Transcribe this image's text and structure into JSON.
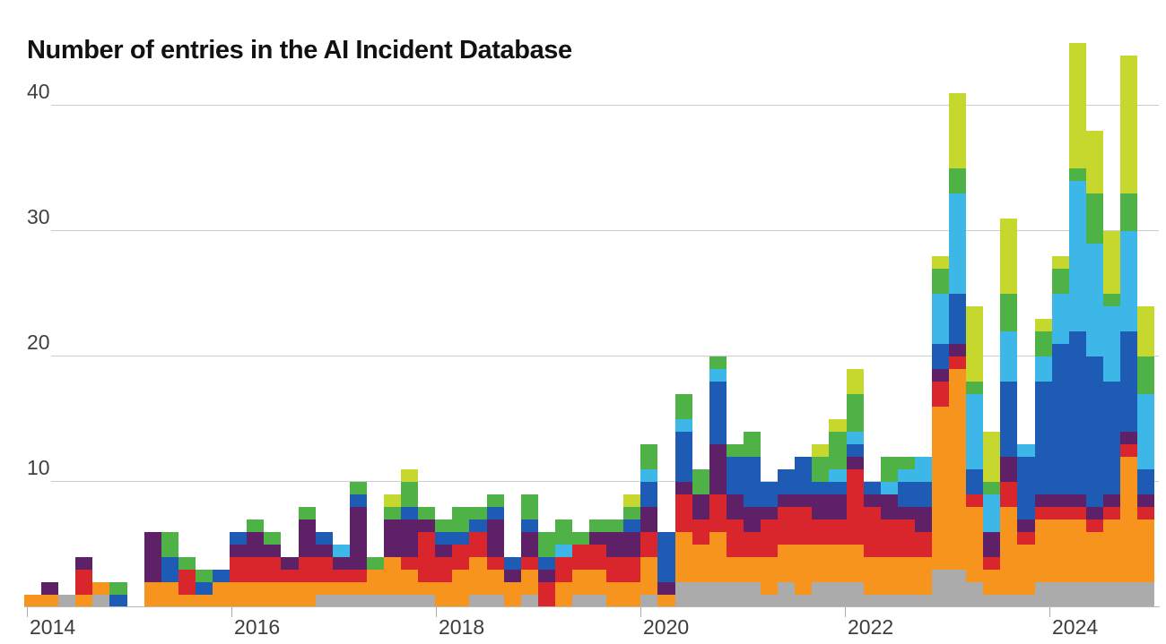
{
  "page": {
    "background": "#ffffff"
  },
  "chart_data": {
    "type": "bar",
    "subtype": "stacked-bar",
    "title": "Number of entries in the AI Incident Database",
    "xlabel": "",
    "ylabel": "",
    "x_tick_labels": [
      "2014",
      "2016",
      "2018",
      "2020",
      "2022",
      "2024"
    ],
    "y_tick_labels": [
      "10",
      "20",
      "30",
      "40"
    ],
    "y_tick_values": [
      10,
      20,
      30,
      40
    ],
    "ylim": [
      0,
      46
    ],
    "grid": "horizontal",
    "legend_position": "none",
    "bin_size": "two months",
    "stack_order": [
      "gray",
      "orange",
      "red",
      "purple",
      "blue",
      "lightblue",
      "green",
      "lime"
    ],
    "colors": {
      "gray": "#ABABAB",
      "orange": "#F7941E",
      "red": "#D8262C",
      "purple": "#5E2167",
      "blue": "#1D5BB5",
      "lightblue": "#3DB7E8",
      "green": "#4FB247",
      "lime": "#C6D82D",
      "gridline": "#CCCCCC",
      "title_text": "#111111",
      "axis_text": "#3D3D3D"
    },
    "bins": [
      {
        "period": "Jan-Feb 2014",
        "stack": {
          "orange": 1
        }
      },
      {
        "period": "Mar-Apr 2014",
        "stack": {
          "orange": 1,
          "purple": 1
        }
      },
      {
        "period": "May-Jun 2014",
        "stack": {
          "gray": 1
        }
      },
      {
        "period": "Jul-Aug 2014",
        "stack": {
          "orange": 1,
          "red": 2,
          "purple": 1
        }
      },
      {
        "period": "Sep-Oct 2014",
        "stack": {
          "gray": 1,
          "orange": 1
        }
      },
      {
        "period": "Nov-Dec 2014",
        "stack": {
          "blue": 1,
          "green": 1
        }
      },
      {
        "period": "Jan-Feb 2015",
        "stack": {}
      },
      {
        "period": "Mar-Apr 2015",
        "stack": {
          "orange": 2,
          "purple": 4
        }
      },
      {
        "period": "May-Jun 2015",
        "stack": {
          "orange": 2,
          "blue": 2,
          "green": 2
        }
      },
      {
        "period": "Jul-Aug 2015",
        "stack": {
          "orange": 1,
          "red": 2,
          "green": 1
        }
      },
      {
        "period": "Sep-Oct 2015",
        "stack": {
          "orange": 1,
          "blue": 1,
          "green": 1
        }
      },
      {
        "period": "Nov-Dec 2015",
        "stack": {
          "orange": 2,
          "blue": 1
        }
      },
      {
        "period": "Jan-Feb 2016",
        "stack": {
          "orange": 2,
          "red": 2,
          "purple": 1,
          "blue": 1
        }
      },
      {
        "period": "Mar-Apr 2016",
        "stack": {
          "orange": 2,
          "red": 2,
          "purple": 2,
          "green": 1
        }
      },
      {
        "period": "May-Jun 2016",
        "stack": {
          "orange": 2,
          "red": 2,
          "purple": 1,
          "green": 1
        }
      },
      {
        "period": "Jul-Aug 2016",
        "stack": {
          "orange": 2,
          "red": 1,
          "purple": 1
        }
      },
      {
        "period": "Sep-Oct 2016",
        "stack": {
          "orange": 2,
          "red": 2,
          "purple": 3,
          "green": 1
        }
      },
      {
        "period": "Nov-Dec 2016",
        "stack": {
          "gray": 1,
          "orange": 1,
          "red": 2,
          "purple": 1,
          "blue": 1
        }
      },
      {
        "period": "Jan-Feb 2017",
        "stack": {
          "gray": 1,
          "orange": 1,
          "red": 1,
          "purple": 1,
          "lightblue": 1
        }
      },
      {
        "period": "Mar-Apr 2017",
        "stack": {
          "gray": 1,
          "orange": 1,
          "red": 1,
          "purple": 5,
          "blue": 1,
          "green": 1
        }
      },
      {
        "period": "May-Jun 2017",
        "stack": {
          "gray": 1,
          "orange": 2,
          "green": 1
        }
      },
      {
        "period": "Jul-Aug 2017",
        "stack": {
          "gray": 1,
          "orange": 3,
          "purple": 3,
          "green": 1,
          "lime": 1
        }
      },
      {
        "period": "Sep-Oct 2017",
        "stack": {
          "gray": 1,
          "orange": 2,
          "red": 1,
          "purple": 3,
          "blue": 1,
          "green": 2,
          "lime": 1
        }
      },
      {
        "period": "Nov-Dec 2017",
        "stack": {
          "gray": 1,
          "orange": 1,
          "red": 4,
          "purple": 1,
          "green": 1
        }
      },
      {
        "period": "Jan-Feb 2018",
        "stack": {
          "orange": 2,
          "red": 2,
          "purple": 1,
          "blue": 1,
          "green": 1
        }
      },
      {
        "period": "Mar-Apr 2018",
        "stack": {
          "orange": 3,
          "red": 2,
          "blue": 1,
          "green": 2
        }
      },
      {
        "period": "May-Jun 2018",
        "stack": {
          "gray": 1,
          "orange": 3,
          "red": 2,
          "blue": 1,
          "green": 1
        }
      },
      {
        "period": "Jul-Aug 2018",
        "stack": {
          "gray": 1,
          "orange": 2,
          "red": 1,
          "purple": 3,
          "blue": 1,
          "green": 1
        }
      },
      {
        "period": "Sep-Oct 2018",
        "stack": {
          "orange": 2,
          "purple": 1,
          "blue": 1
        }
      },
      {
        "period": "Nov-Dec 2018",
        "stack": {
          "gray": 1,
          "orange": 2,
          "red": 1,
          "purple": 2,
          "blue": 1,
          "green": 2
        }
      },
      {
        "period": "Jan-Feb 2019",
        "stack": {
          "red": 2,
          "purple": 1,
          "blue": 1,
          "green": 2
        }
      },
      {
        "period": "Mar-Apr 2019",
        "stack": {
          "orange": 2,
          "red": 2,
          "lightblue": 1,
          "green": 2
        }
      },
      {
        "period": "May-Jun 2019",
        "stack": {
          "gray": 1,
          "orange": 2,
          "red": 2,
          "green": 1
        }
      },
      {
        "period": "Jul-Aug 2019",
        "stack": {
          "gray": 1,
          "orange": 2,
          "red": 2,
          "purple": 1,
          "green": 1
        }
      },
      {
        "period": "Sep-Oct 2019",
        "stack": {
          "orange": 2,
          "red": 2,
          "purple": 2,
          "green": 1
        }
      },
      {
        "period": "Nov-Dec 2019",
        "stack": {
          "orange": 2,
          "red": 2,
          "purple": 2,
          "blue": 1,
          "green": 1,
          "lime": 1
        }
      },
      {
        "period": "Jan-Feb 2020",
        "stack": {
          "gray": 1,
          "orange": 3,
          "red": 2,
          "purple": 2,
          "blue": 2,
          "lightblue": 1,
          "green": 2
        }
      },
      {
        "period": "Mar-Apr 2020",
        "stack": {
          "orange": 1,
          "purple": 1,
          "blue": 4
        }
      },
      {
        "period": "May-Jun 2020",
        "stack": {
          "gray": 2,
          "orange": 4,
          "red": 3,
          "purple": 1,
          "blue": 4,
          "lightblue": 1,
          "green": 2
        }
      },
      {
        "period": "Jul-Aug 2020",
        "stack": {
          "gray": 2,
          "orange": 3,
          "red": 2,
          "purple": 2,
          "green": 2
        }
      },
      {
        "period": "Sep-Oct 2020",
        "stack": {
          "gray": 2,
          "orange": 4,
          "red": 3,
          "purple": 4,
          "blue": 5,
          "lightblue": 1,
          "green": 1
        }
      },
      {
        "period": "Nov-Dec 2020",
        "stack": {
          "gray": 2,
          "orange": 2,
          "red": 3,
          "purple": 2,
          "blue": 3,
          "green": 1
        }
      },
      {
        "period": "Jan-Feb 2021",
        "stack": {
          "gray": 2,
          "orange": 2,
          "red": 2,
          "purple": 2,
          "blue": 4,
          "green": 2
        }
      },
      {
        "period": "Mar-Apr 2021",
        "stack": {
          "gray": 1,
          "orange": 3,
          "red": 3,
          "purple": 1,
          "blue": 2
        }
      },
      {
        "period": "May-Jun 2021",
        "stack": {
          "gray": 2,
          "orange": 3,
          "red": 3,
          "purple": 1,
          "blue": 2
        }
      },
      {
        "period": "Jul-Aug 2021",
        "stack": {
          "gray": 1,
          "orange": 4,
          "red": 3,
          "purple": 1,
          "blue": 3
        }
      },
      {
        "period": "Sep-Oct 2021",
        "stack": {
          "gray": 2,
          "orange": 3,
          "red": 2,
          "purple": 2,
          "blue": 1,
          "green": 2,
          "lime": 1
        }
      },
      {
        "period": "Nov-Dec 2021",
        "stack": {
          "gray": 2,
          "orange": 3,
          "red": 2,
          "purple": 2,
          "blue": 1,
          "lightblue": 1,
          "green": 3,
          "lime": 1
        }
      },
      {
        "period": "Jan-Feb 2022",
        "stack": {
          "gray": 2,
          "orange": 3,
          "red": 6,
          "purple": 1,
          "blue": 1,
          "lightblue": 1,
          "green": 3,
          "lime": 2
        }
      },
      {
        "period": "Mar-Apr 2022",
        "stack": {
          "gray": 1,
          "orange": 3,
          "red": 4,
          "purple": 1,
          "blue": 1
        }
      },
      {
        "period": "May-Jun 2022",
        "stack": {
          "gray": 1,
          "orange": 3,
          "red": 3,
          "purple": 2,
          "lightblue": 1,
          "green": 2
        }
      },
      {
        "period": "Jul-Aug 2022",
        "stack": {
          "gray": 1,
          "orange": 3,
          "red": 3,
          "purple": 1,
          "blue": 2,
          "lightblue": 1,
          "green": 1
        }
      },
      {
        "period": "Sep-Oct 2022",
        "stack": {
          "gray": 1,
          "orange": 3,
          "red": 2,
          "purple": 2,
          "blue": 2,
          "lightblue": 2
        }
      },
      {
        "period": "Nov-Dec 2022",
        "stack": {
          "gray": 3,
          "orange": 13,
          "red": 2,
          "purple": 1,
          "blue": 2,
          "lightblue": 4,
          "green": 2,
          "lime": 1
        }
      },
      {
        "period": "Jan-Feb 2023",
        "stack": {
          "gray": 3,
          "orange": 16,
          "red": 1,
          "purple": 1,
          "blue": 4,
          "lightblue": 8,
          "green": 2,
          "lime": 6
        }
      },
      {
        "period": "Mar-Apr 2023",
        "stack": {
          "gray": 2,
          "orange": 6,
          "red": 1,
          "blue": 2,
          "lightblue": 6,
          "green": 1,
          "lime": 6
        }
      },
      {
        "period": "May-Jun 2023",
        "stack": {
          "gray": 1,
          "orange": 2,
          "red": 1,
          "purple": 2,
          "lightblue": 3,
          "green": 1,
          "lime": 4
        }
      },
      {
        "period": "Jul-Aug 2023",
        "stack": {
          "gray": 1,
          "orange": 7,
          "red": 2,
          "purple": 2,
          "blue": 6,
          "lightblue": 4,
          "green": 3,
          "lime": 6
        }
      },
      {
        "period": "Sep-Oct 2023",
        "stack": {
          "gray": 1,
          "orange": 4,
          "red": 1,
          "purple": 1,
          "blue": 5,
          "lightblue": 1
        }
      },
      {
        "period": "Nov-Dec 2023",
        "stack": {
          "gray": 2,
          "orange": 5,
          "red": 1,
          "purple": 1,
          "blue": 9,
          "lightblue": 2,
          "green": 2,
          "lime": 1
        }
      },
      {
        "period": "Jan-Feb 2024",
        "stack": {
          "gray": 2,
          "orange": 5,
          "red": 1,
          "purple": 1,
          "blue": 12,
          "lightblue": 4,
          "green": 2,
          "lime": 1
        }
      },
      {
        "period": "Mar-Apr 2024",
        "stack": {
          "gray": 2,
          "orange": 5,
          "red": 1,
          "purple": 1,
          "blue": 13,
          "lightblue": 12,
          "green": 1,
          "lime": 10
        }
      },
      {
        "period": "May-Jun 2024",
        "stack": {
          "gray": 2,
          "orange": 4,
          "red": 1,
          "purple": 1,
          "blue": 12,
          "lightblue": 9,
          "green": 4,
          "lime": 5
        }
      },
      {
        "period": "Jul-Aug 2024",
        "stack": {
          "gray": 2,
          "orange": 5,
          "red": 1,
          "purple": 1,
          "blue": 9,
          "lightblue": 6,
          "green": 1,
          "lime": 5
        }
      },
      {
        "period": "Sep-Oct 2024",
        "stack": {
          "gray": 2,
          "orange": 10,
          "red": 1,
          "purple": 1,
          "blue": 8,
          "lightblue": 8,
          "green": 3,
          "lime": 11
        }
      },
      {
        "period": "Nov-Dec 2024",
        "stack": {
          "gray": 2,
          "orange": 5,
          "red": 1,
          "purple": 1,
          "blue": 2,
          "lightblue": 6,
          "green": 3,
          "lime": 4
        }
      }
    ]
  }
}
